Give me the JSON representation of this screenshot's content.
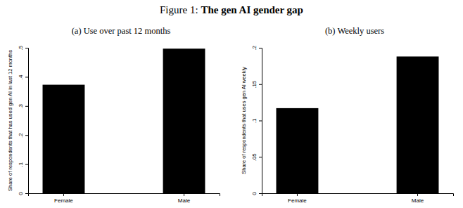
{
  "figure": {
    "label": "Figure 1:",
    "title": "The gen AI gender gap"
  },
  "chart_data": [
    {
      "type": "bar",
      "title": "(a) Use over past 12 months",
      "ylabel": "Share of respondents that has used gen AI in last 12 months",
      "categories": [
        "Female",
        "Male"
      ],
      "values": [
        0.373,
        0.497
      ],
      "color": "#000000",
      "ylim": [
        0,
        0.5
      ],
      "yticks": [
        0,
        {
          "value": 0.1,
          "label": ".1"
        },
        {
          "value": 0.2,
          "label": ".2"
        },
        {
          "value": 0.3,
          "label": ".3"
        },
        {
          "value": 0.4,
          "label": ".4"
        },
        {
          "value": 0.5,
          "label": ".5"
        }
      ]
    },
    {
      "type": "bar",
      "title": "(b) Weekly users",
      "ylabel": "Share of respondents that uses gen AI weekly",
      "categories": [
        "Female",
        "Male"
      ],
      "values": [
        0.117,
        0.188
      ],
      "color": "#000000",
      "ylim": [
        0,
        0.2
      ],
      "yticks": [
        0,
        {
          "value": 0.05,
          "label": ".05"
        },
        {
          "value": 0.1,
          "label": ".1"
        },
        {
          "value": 0.15,
          "label": ".15"
        },
        {
          "value": 0.2,
          "label": ".2"
        }
      ]
    }
  ]
}
